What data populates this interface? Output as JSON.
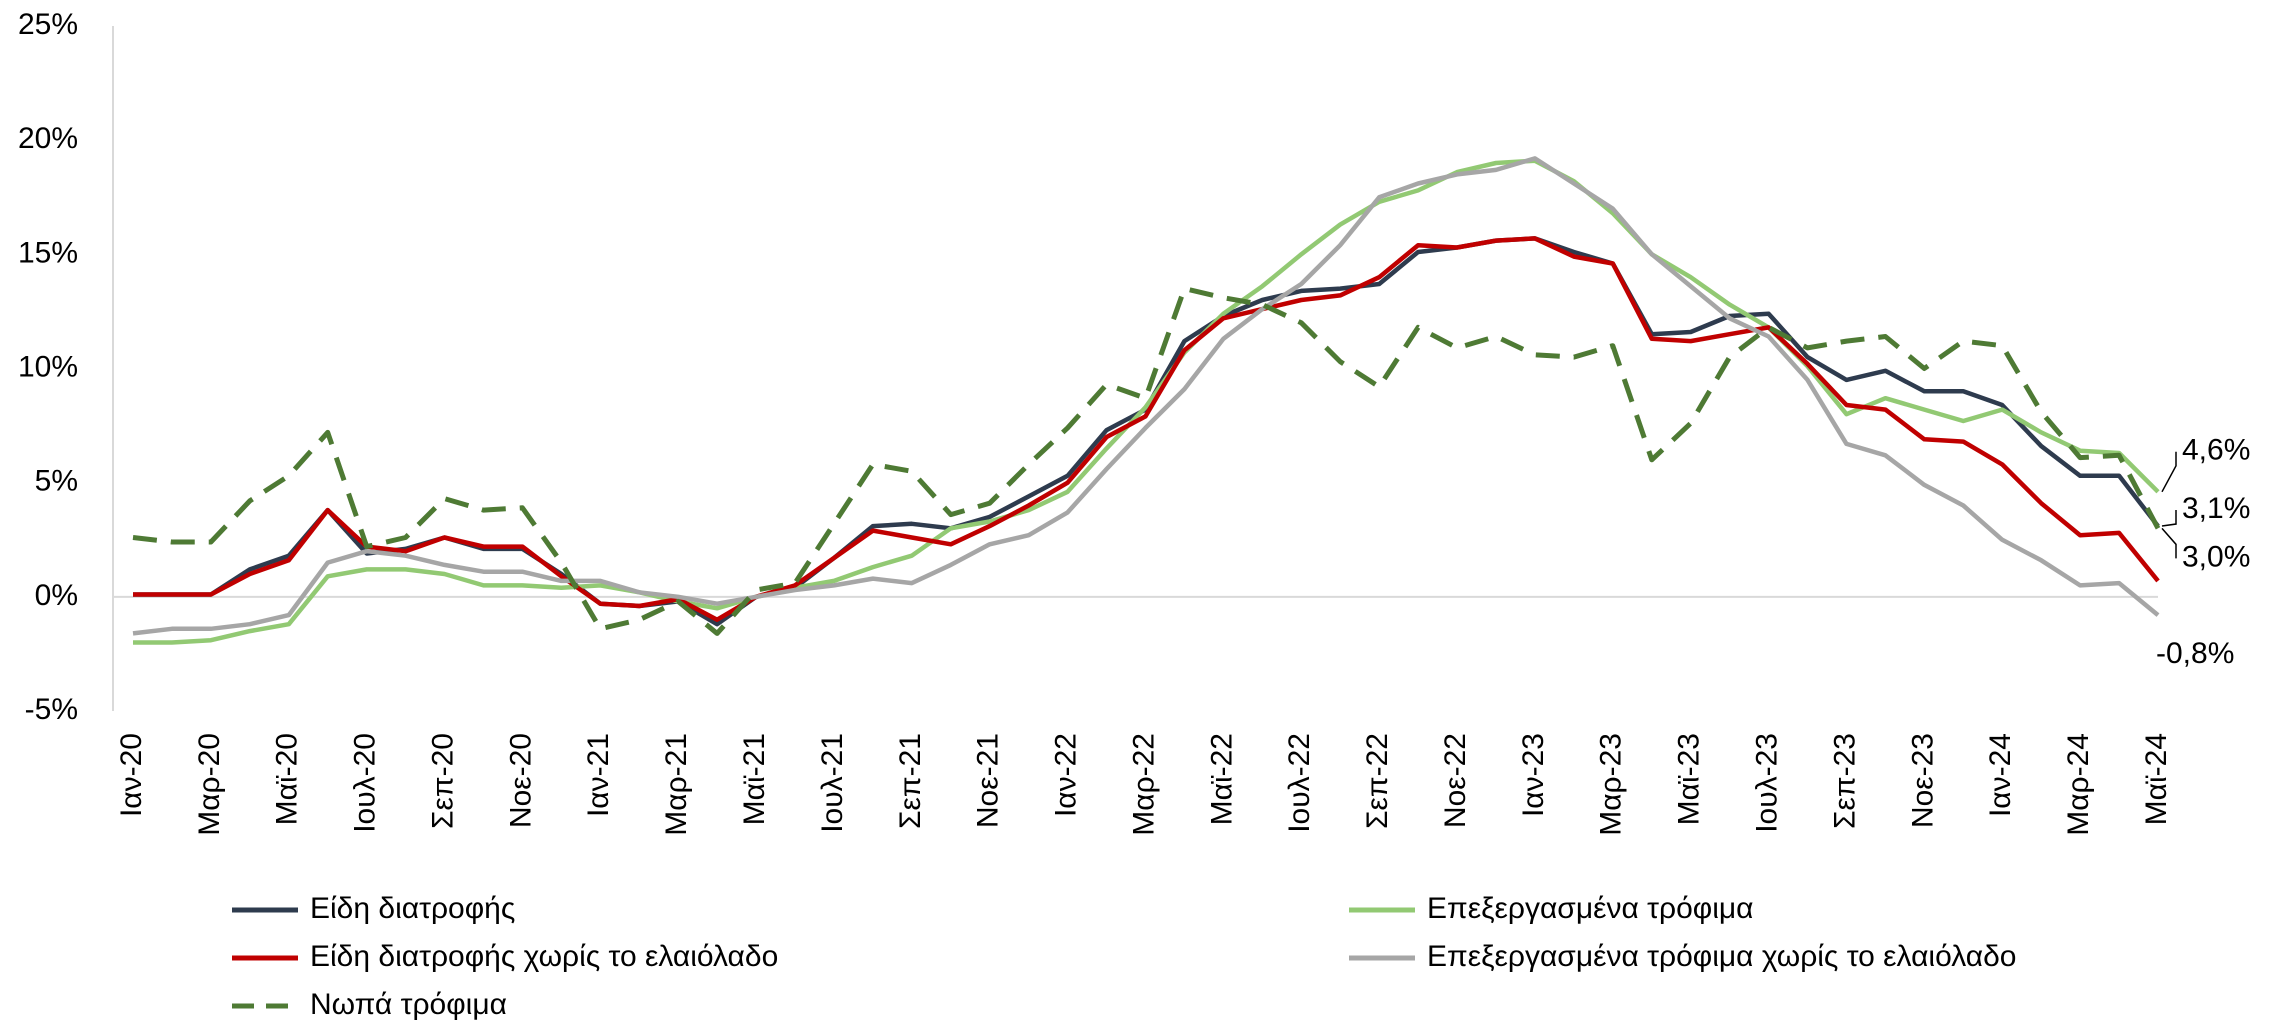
{
  "chart_data": {
    "type": "line",
    "categories": [
      "Ιαν-20",
      null,
      "Μαρ-20",
      null,
      "Μαϊ-20",
      null,
      "Ιουλ-20",
      null,
      "Σεπ-20",
      null,
      "Νοε-20",
      null,
      "Ιαν-21",
      null,
      "Μαρ-21",
      null,
      "Μαϊ-21",
      null,
      "Ιουλ-21",
      null,
      "Σεπ-21",
      null,
      "Νοε-21",
      null,
      "Ιαν-22",
      null,
      "Μαρ-22",
      null,
      "Μαϊ-22",
      null,
      "Ιουλ-22",
      null,
      "Σεπ-22",
      null,
      "Νοε-22",
      null,
      "Ιαν-23",
      null,
      "Μαρ-23",
      null,
      "Μαϊ-23",
      null,
      "Ιουλ-23",
      null,
      "Σεπ-23",
      null,
      "Νοε-23",
      null,
      "Ιαν-24",
      null,
      "Μαρ-24",
      null,
      "Μαϊ-24"
    ],
    "ylim": [
      -5,
      25
    ],
    "yticks": [
      {
        "value": -5,
        "label": "-5%"
      },
      {
        "value": 0,
        "label": "0%"
      },
      {
        "value": 5,
        "label": "5%"
      },
      {
        "value": 10,
        "label": "10%"
      },
      {
        "value": 15,
        "label": "15%"
      },
      {
        "value": 20,
        "label": "20%"
      },
      {
        "value": 25,
        "label": "25%"
      }
    ],
    "series": [
      {
        "name": "Είδη διατροφής",
        "color": "#2e3b4e",
        "style": "solid",
        "values": [
          0.1,
          0.1,
          0.1,
          1.2,
          1.8,
          3.8,
          1.9,
          2.1,
          2.6,
          2.1,
          2.1,
          1.0,
          -0.3,
          -0.4,
          -0.2,
          -1.2,
          0.0,
          0.4,
          1.7,
          3.1,
          3.2,
          3.0,
          3.5,
          4.4,
          5.3,
          7.3,
          8.2,
          11.2,
          12.3,
          13.0,
          13.4,
          13.5,
          13.7,
          15.1,
          15.3,
          15.6,
          15.7,
          15.1,
          14.6,
          11.5,
          11.6,
          12.3,
          12.4,
          10.5,
          9.5,
          9.9,
          9.0,
          9.0,
          8.4,
          6.6,
          5.3,
          5.3,
          3.1
        ],
        "value_labels": [
          null,
          null,
          null,
          null,
          null,
          null,
          null,
          null,
          null,
          null,
          null,
          null,
          null,
          null,
          null,
          null,
          null,
          null,
          null,
          null,
          null,
          null,
          null,
          null,
          null,
          null,
          null,
          null,
          null,
          null,
          null,
          null,
          null,
          null,
          null,
          null,
          null,
          null,
          null,
          null,
          null,
          null,
          null,
          null,
          null,
          null,
          null,
          null,
          null,
          null,
          null,
          null,
          "3,1%"
        ]
      },
      {
        "name": "Επεξεργασμένα τρόφιμα",
        "color": "#92c973",
        "style": "solid",
        "values": [
          -2.0,
          -2.0,
          -1.9,
          -1.5,
          -1.2,
          0.9,
          1.2,
          1.2,
          1.0,
          0.5,
          0.5,
          0.4,
          0.5,
          0.2,
          -0.2,
          -0.5,
          0.0,
          0.4,
          0.7,
          1.3,
          1.8,
          3.0,
          3.3,
          3.8,
          4.6,
          6.5,
          8.3,
          10.7,
          12.4,
          13.6,
          15.0,
          16.3,
          17.3,
          17.8,
          18.6,
          19.0,
          19.1,
          18.2,
          16.8,
          15.0,
          14.0,
          12.8,
          11.8,
          10.1,
          8.0,
          8.7,
          8.2,
          7.7,
          8.2,
          7.2,
          6.4,
          6.3,
          4.6
        ],
        "value_labels": [
          null,
          null,
          null,
          null,
          null,
          null,
          null,
          null,
          null,
          null,
          null,
          null,
          null,
          null,
          null,
          null,
          null,
          null,
          null,
          null,
          null,
          null,
          null,
          null,
          null,
          null,
          null,
          null,
          null,
          null,
          null,
          null,
          null,
          null,
          null,
          null,
          null,
          null,
          null,
          null,
          null,
          null,
          null,
          null,
          null,
          null,
          null,
          null,
          null,
          null,
          null,
          null,
          "4,6%"
        ]
      },
      {
        "name": "Είδη διατροφής χωρίς το ελαιόλαδο",
        "color": "#c00000",
        "style": "solid",
        "values": [
          0.1,
          0.1,
          0.1,
          1.0,
          1.6,
          3.8,
          2.2,
          2.0,
          2.6,
          2.2,
          2.2,
          0.9,
          -0.3,
          -0.4,
          -0.1,
          -1.0,
          0.0,
          0.5,
          1.7,
          2.9,
          2.6,
          2.3,
          3.1,
          4.0,
          5.0,
          7.0,
          7.9,
          10.8,
          12.2,
          12.6,
          13.0,
          13.2,
          14.0,
          15.4,
          15.3,
          15.6,
          15.7,
          14.9,
          14.6,
          11.3,
          11.2,
          11.5,
          11.8,
          10.2,
          8.4,
          8.2,
          6.9,
          6.8,
          5.8,
          4.1,
          2.7,
          2.8,
          0.7
        ]
      },
      {
        "name": "Επεξεργασμένα τρόφιμα χωρίς το ελαιόλαδο",
        "color": "#a6a6a6",
        "style": "solid",
        "values": [
          -1.6,
          -1.4,
          -1.4,
          -1.2,
          -0.8,
          1.5,
          2.0,
          1.8,
          1.4,
          1.1,
          1.1,
          0.7,
          0.7,
          0.2,
          0.0,
          -0.3,
          0.0,
          0.3,
          0.5,
          0.8,
          0.6,
          1.4,
          2.3,
          2.7,
          3.7,
          5.6,
          7.4,
          9.1,
          11.3,
          12.6,
          13.7,
          15.4,
          17.5,
          18.1,
          18.5,
          18.7,
          19.2,
          18.1,
          17.0,
          15.0,
          13.6,
          12.2,
          11.4,
          9.5,
          6.7,
          6.2,
          4.9,
          4.0,
          2.5,
          1.6,
          0.5,
          0.6,
          -0.8
        ],
        "value_labels": [
          null,
          null,
          null,
          null,
          null,
          null,
          null,
          null,
          null,
          null,
          null,
          null,
          null,
          null,
          null,
          null,
          null,
          null,
          null,
          null,
          null,
          null,
          null,
          null,
          null,
          null,
          null,
          null,
          null,
          null,
          null,
          null,
          null,
          null,
          null,
          null,
          null,
          null,
          null,
          null,
          null,
          null,
          null,
          null,
          null,
          null,
          null,
          null,
          null,
          null,
          null,
          null,
          "-0,8%"
        ]
      },
      {
        "name": "Νωπά τρόφιμα",
        "color": "#4e7a34",
        "style": "dashed",
        "values": [
          2.6,
          2.4,
          2.4,
          4.2,
          5.3,
          7.2,
          2.2,
          2.6,
          4.3,
          3.8,
          3.9,
          1.5,
          -1.4,
          -1.0,
          -0.2,
          -1.6,
          0.3,
          0.6,
          3.2,
          5.8,
          5.5,
          3.6,
          4.1,
          5.8,
          7.4,
          9.3,
          8.7,
          13.5,
          13.1,
          12.8,
          12.0,
          10.3,
          9.2,
          11.8,
          10.9,
          11.4,
          10.6,
          10.5,
          11.0,
          6.0,
          7.6,
          10.5,
          11.8,
          10.9,
          11.2,
          11.4,
          10.0,
          11.2,
          11.0,
          8.1,
          6.1,
          6.2,
          3.0
        ],
        "value_labels": [
          null,
          null,
          null,
          null,
          null,
          null,
          null,
          null,
          null,
          null,
          null,
          null,
          null,
          null,
          null,
          null,
          null,
          null,
          null,
          null,
          null,
          null,
          null,
          null,
          null,
          null,
          null,
          null,
          null,
          null,
          null,
          null,
          null,
          null,
          null,
          null,
          null,
          null,
          null,
          null,
          null,
          null,
          null,
          null,
          null,
          null,
          null,
          null,
          null,
          null,
          null,
          null,
          "3,0%"
        ]
      }
    ]
  }
}
